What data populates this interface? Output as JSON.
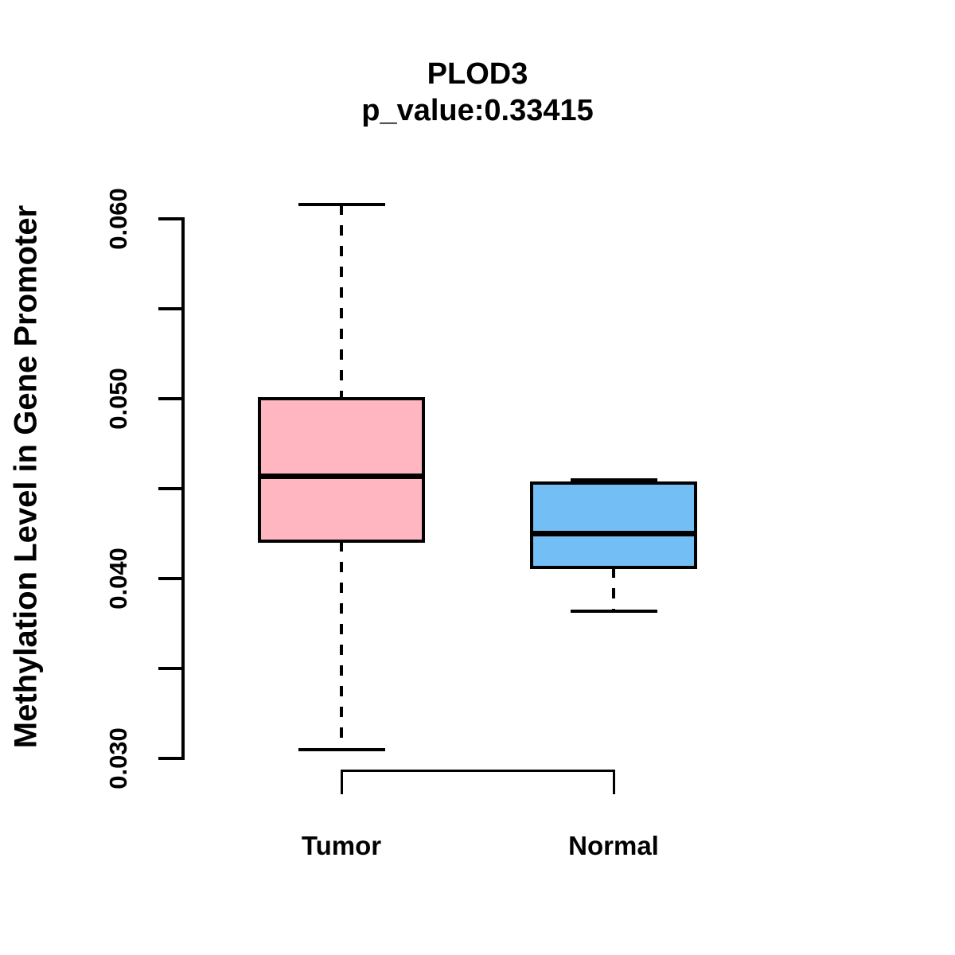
{
  "chart_data": {
    "type": "boxplot",
    "title": "PLOD3",
    "subtitle": "p_value:0.33415",
    "ylabel": "Methylation Level in Gene Promoter",
    "categories": [
      "Tumor",
      "Normal"
    ],
    "series": [
      {
        "name": "Tumor",
        "fill": "#FFB6C1",
        "lower_whisker": 0.0305,
        "q1": 0.0421,
        "median": 0.0457,
        "q3": 0.05,
        "upper_whisker": 0.0608
      },
      {
        "name": "Normal",
        "fill": "#74BEF6",
        "lower_whisker": 0.0382,
        "q1": 0.0406,
        "median": 0.0425,
        "q3": 0.0453,
        "upper_whisker": 0.0455
      }
    ],
    "y_axis": {
      "min": 0.03,
      "max": 0.06,
      "tick_step": 0.005,
      "label_step": 0.01,
      "tick_labels": [
        "0.030",
        "0.040",
        "0.050",
        "0.060"
      ]
    },
    "whisker_line_style": "dashed",
    "line_color": "#000000",
    "background": "#FFFFFF",
    "grid": false,
    "legend": false
  }
}
